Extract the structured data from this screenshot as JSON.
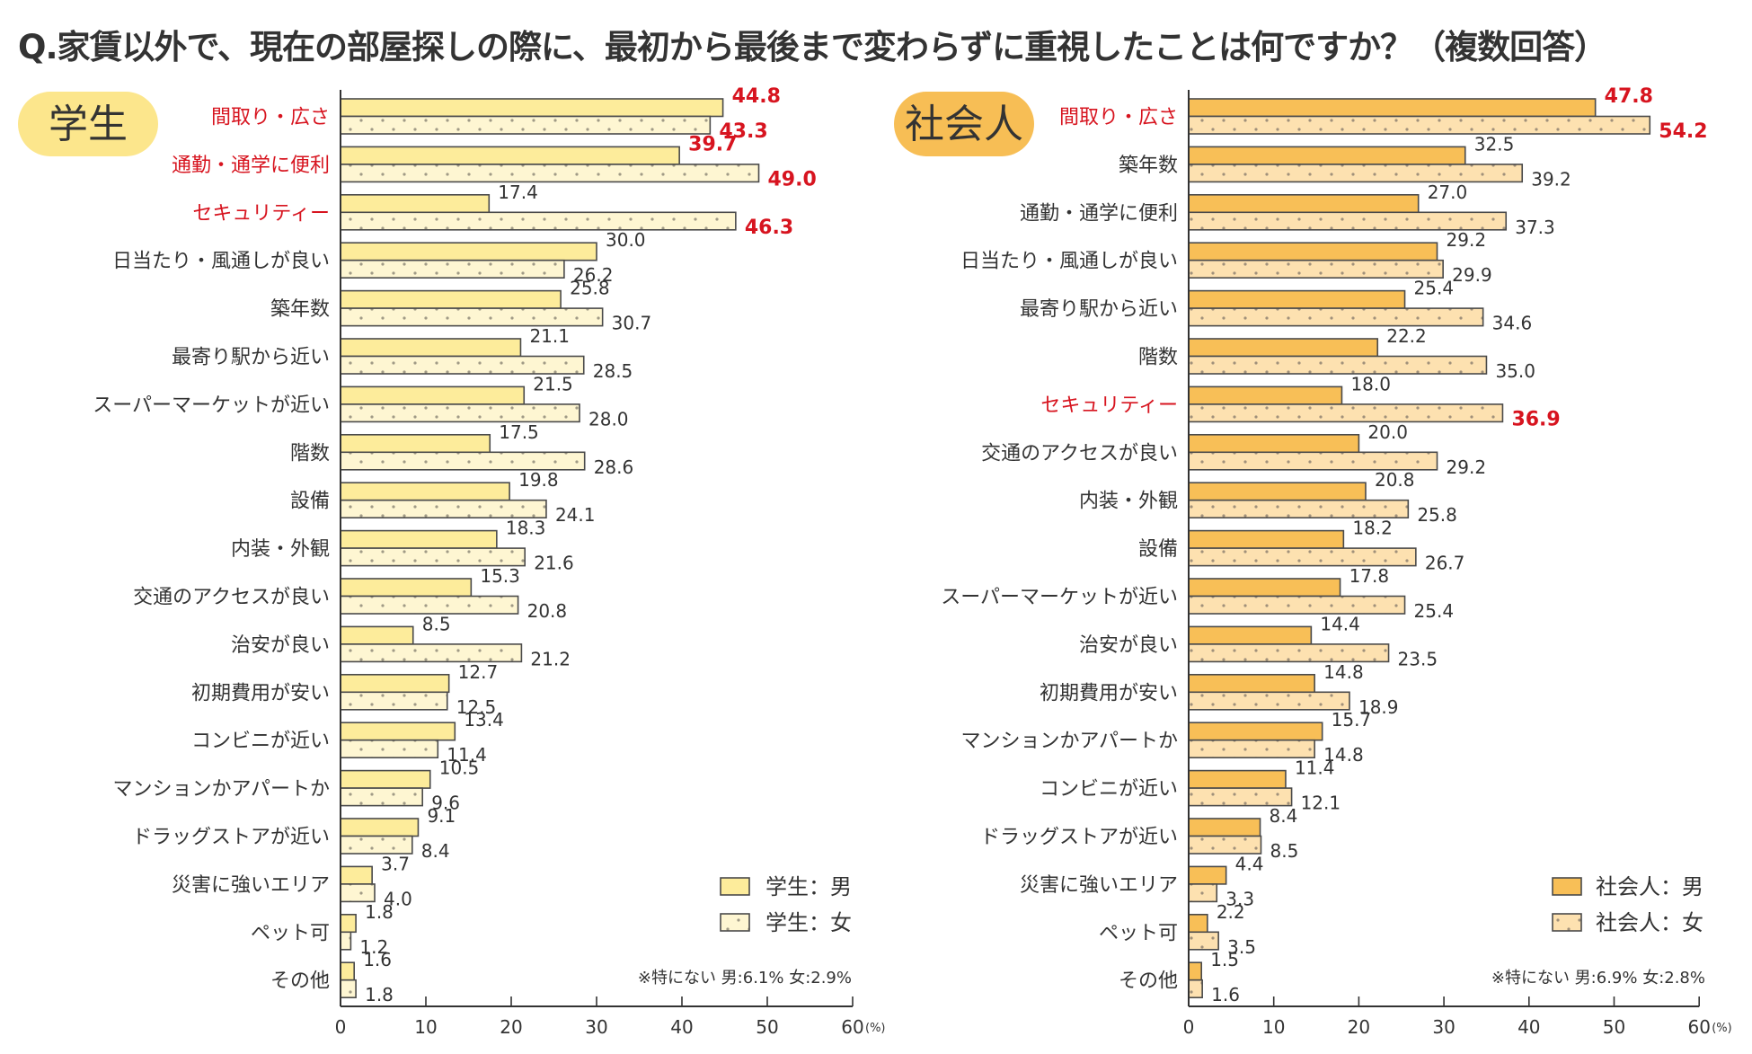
{
  "title": "Q.家賃以外で、現在の部屋探しの際に、最初から最後まで変わらずに重視したことは何ですか？（複数回答）",
  "colors": {
    "student_male": "#fdec9b",
    "student_female": "#fef6d2",
    "worker_male": "#f8bf57",
    "worker_female": "#fde1b0",
    "highlight": "#d7141f",
    "pill_student": "#fce68c",
    "pill_worker": "#f7be55"
  },
  "chart_data": [
    {
      "type": "bar",
      "orientation": "horizontal",
      "panel_label": "学生",
      "title": "",
      "xlabel": "",
      "ylabel": "",
      "unit_label": "(%)",
      "xlim": [
        0,
        60
      ],
      "xticks": [
        "0",
        "10",
        "20",
        "30",
        "40",
        "50",
        "60"
      ],
      "grid": false,
      "legend_position": "bottom-right",
      "categories": [
        "間取り・広さ",
        "通勤・通学に便利",
        "セキュリティー",
        "日当たり・風通しが良い",
        "築年数",
        "最寄り駅から近い",
        "スーパーマーケットが近い",
        "階数",
        "設備",
        "内装・外観",
        "交通のアクセスが良い",
        "治安が良い",
        "初期費用が安い",
        "コンビニが近い",
        "マンションかアパートか",
        "ドラッグストアが近い",
        "災害に強いエリア",
        "ペット可",
        "その他"
      ],
      "highlighted_categories": [
        "間取り・広さ",
        "通勤・通学に便利",
        "セキュリティー"
      ],
      "series": [
        {
          "name": "学生：男",
          "values": [
            44.8,
            39.7,
            17.4,
            30.0,
            25.8,
            21.1,
            21.5,
            17.5,
            19.8,
            18.3,
            15.3,
            8.5,
            12.7,
            13.4,
            10.5,
            9.1,
            3.7,
            1.8,
            1.6
          ],
          "highlighted_values": [
            true,
            true,
            false,
            false,
            false,
            false,
            false,
            false,
            false,
            false,
            false,
            false,
            false,
            false,
            false,
            false,
            false,
            false,
            false
          ]
        },
        {
          "name": "学生：女",
          "values": [
            43.3,
            49.0,
            46.3,
            26.2,
            30.7,
            28.5,
            28.0,
            28.6,
            24.1,
            21.6,
            20.8,
            21.2,
            12.5,
            11.4,
            9.6,
            8.4,
            4.0,
            1.2,
            1.8
          ],
          "highlighted_values": [
            true,
            true,
            true,
            false,
            false,
            false,
            false,
            false,
            false,
            false,
            false,
            false,
            false,
            false,
            false,
            false,
            false,
            false,
            false
          ]
        }
      ],
      "note": "※特にない 男:6.1% 女:2.9%"
    },
    {
      "type": "bar",
      "orientation": "horizontal",
      "panel_label": "社会人",
      "title": "",
      "xlabel": "",
      "ylabel": "",
      "unit_label": "(%)",
      "xlim": [
        0,
        60
      ],
      "xticks": [
        "0",
        "10",
        "20",
        "30",
        "40",
        "50",
        "60"
      ],
      "grid": false,
      "legend_position": "bottom-right",
      "categories": [
        "間取り・広さ",
        "築年数",
        "通勤・通学に便利",
        "日当たり・風通しが良い",
        "最寄り駅から近い",
        "階数",
        "セキュリティー",
        "交通のアクセスが良い",
        "内装・外観",
        "設備",
        "スーパーマーケットが近い",
        "治安が良い",
        "初期費用が安い",
        "マンションかアパートか",
        "コンビニが近い",
        "ドラッグストアが近い",
        "災害に強いエリア",
        "ペット可",
        "その他"
      ],
      "highlighted_categories": [
        "間取り・広さ",
        "セキュリティー"
      ],
      "series": [
        {
          "name": "社会人：男",
          "values": [
            47.8,
            32.5,
            27.0,
            29.2,
            25.4,
            22.2,
            18.0,
            20.0,
            20.8,
            18.2,
            17.8,
            14.4,
            14.8,
            15.7,
            11.4,
            8.4,
            4.4,
            2.2,
            1.5
          ],
          "highlighted_values": [
            true,
            false,
            false,
            false,
            false,
            false,
            false,
            false,
            false,
            false,
            false,
            false,
            false,
            false,
            false,
            false,
            false,
            false,
            false
          ]
        },
        {
          "name": "社会人：女",
          "values": [
            54.2,
            39.2,
            37.3,
            29.9,
            34.6,
            35.0,
            36.9,
            29.2,
            25.8,
            26.7,
            25.4,
            23.5,
            18.9,
            14.8,
            12.1,
            8.5,
            3.3,
            3.5,
            1.6
          ],
          "highlighted_values": [
            true,
            false,
            false,
            false,
            false,
            false,
            true,
            false,
            false,
            false,
            false,
            false,
            false,
            false,
            false,
            false,
            false,
            false,
            false
          ]
        }
      ],
      "note": "※特にない 男:6.9% 女:2.8%"
    }
  ]
}
